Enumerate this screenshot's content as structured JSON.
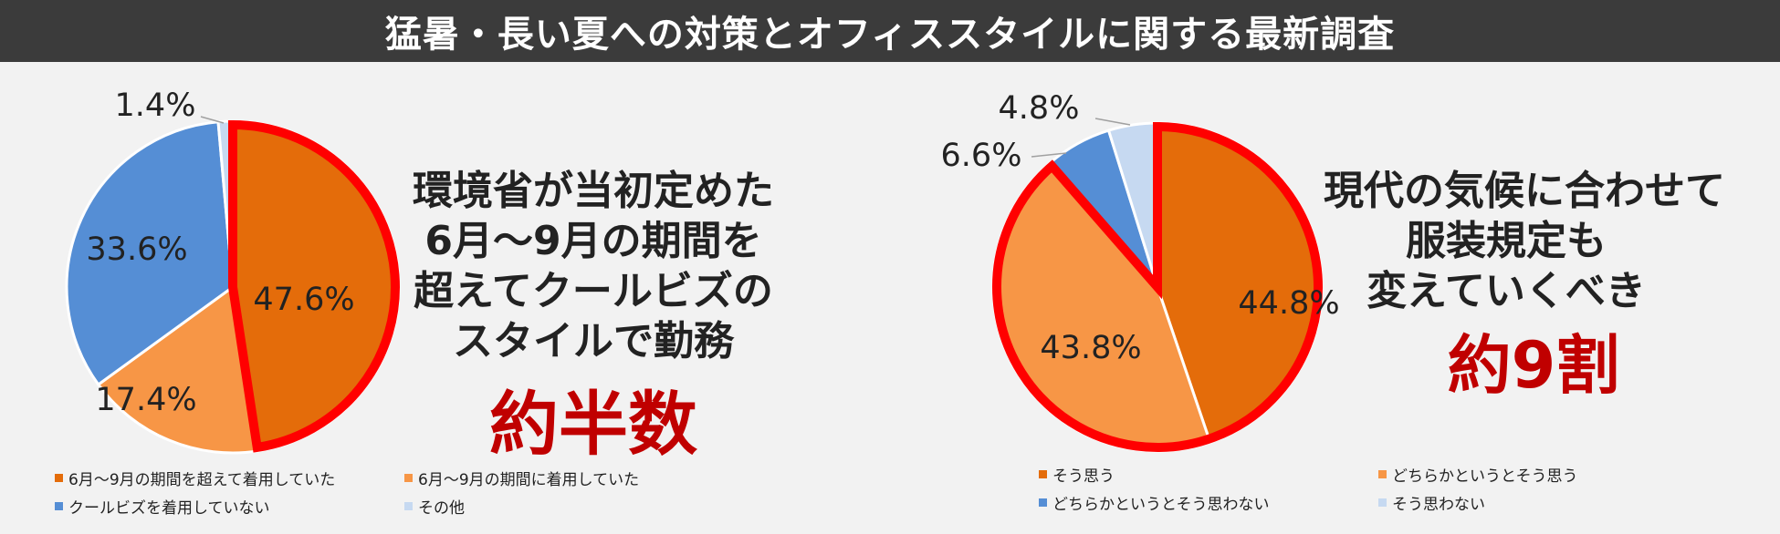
{
  "header": {
    "title": "猛暑・長い夏への対策とオフィススタイルに関する最新調査"
  },
  "left": {
    "callout": [
      "環境省が当初定めた",
      "6月〜9月の期間を",
      "超えてクールビズの",
      "スタイルで勤務"
    ],
    "big": "約半数"
  },
  "right": {
    "callout": [
      "現代の気候に合わせて",
      "服装規定も",
      "変えていくべき"
    ],
    "big": "約9割"
  },
  "chart_data": [
    {
      "type": "pie",
      "categories": [
        "6月〜9月の期間を超えて着用していた",
        "6月〜9月の期間に着用していた",
        "クールビズを着用していない",
        "その他"
      ],
      "values": [
        47.6,
        17.4,
        33.6,
        1.4
      ],
      "labels": [
        "47.6%",
        "17.4%",
        "33.6%",
        "1.4%"
      ],
      "colors": [
        "#e46c0a",
        "#f79646",
        "#558ed5",
        "#c6d9f1"
      ],
      "highlight": [
        0
      ],
      "highlight_color": "#ff0000",
      "legend_placement": "bottom"
    },
    {
      "type": "pie",
      "categories": [
        "そう思う",
        "どちらかというとそう思う",
        "どちらかというとそう思わない",
        "そう思わない"
      ],
      "values": [
        44.8,
        43.8,
        6.6,
        4.8
      ],
      "labels": [
        "44.8%",
        "43.8%",
        "6.6%",
        "4.8%"
      ],
      "colors": [
        "#e46c0a",
        "#f79646",
        "#558ed5",
        "#c6d9f1"
      ],
      "highlight": [
        0,
        1
      ],
      "highlight_color": "#ff0000",
      "legend_placement": "bottom"
    }
  ]
}
